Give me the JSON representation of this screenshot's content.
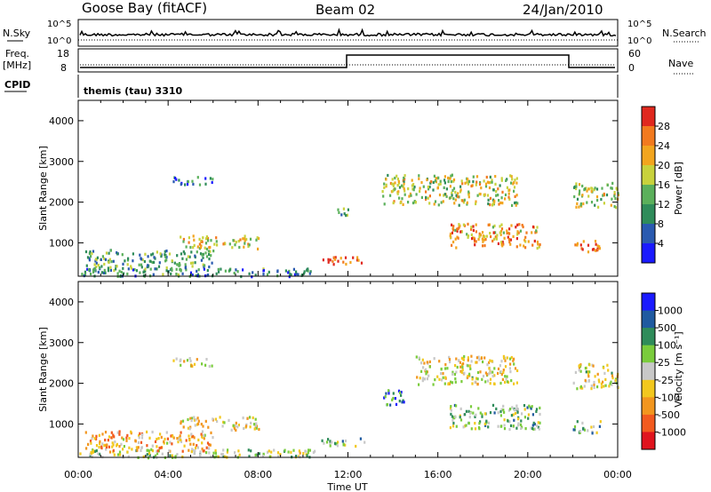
{
  "header": {
    "station": "Goose Bay (fitACF)",
    "beam": "Beam 02",
    "date": "24/Jan/2010"
  },
  "panels": {
    "nsky_label": "N.Sky",
    "nsky_ticks": [
      "10^5",
      "10^0"
    ],
    "nsearch_label": "N.Search",
    "nsearch_ticks": [
      "10^5",
      "10^0"
    ],
    "freq_label": "Freq.",
    "freq_unit": "[MHz]",
    "freq_ticks": [
      "18",
      "8"
    ],
    "nave_label": "Nave",
    "nave_ticks": [
      "60",
      "0"
    ],
    "cpid_label": "CPID",
    "cpid_value": "themis (tau) 3310"
  },
  "colors": {
    "power_scale": [
      "#1a1aff",
      "#2a5ab0",
      "#2f8c5a",
      "#5bb05b",
      "#c8d23c",
      "#f2a51e",
      "#f27a1e",
      "#e0281e"
    ],
    "velocity_scale": [
      "#1a1aff",
      "#1f5aa0",
      "#2f8c5a",
      "#7acc3c",
      "#c8c8c8",
      "#f2c81e",
      "#f2961e",
      "#f25a1e",
      "#e0141e"
    ]
  },
  "chart_data": [
    {
      "type": "heatmap",
      "name": "power",
      "ylabel": "Slant Range [km]",
      "y_ticks": [
        "1000",
        "2000",
        "3000",
        "4000"
      ],
      "colorbar_label": "Power [dB]",
      "colorbar_ticks": [
        "4",
        "8",
        "12",
        "16",
        "20",
        "24",
        "28"
      ],
      "xlim": [
        0,
        24
      ],
      "ylim": [
        180,
        4500
      ],
      "regions": [
        {
          "x": [
            0.0,
            10.5
          ],
          "y": [
            200,
            400
          ],
          "level": 0.3
        },
        {
          "x": [
            0.3,
            6.0
          ],
          "y": [
            350,
            850
          ],
          "level": 0.35
        },
        {
          "x": [
            4.5,
            8.0
          ],
          "y": [
            880,
            1200
          ],
          "level": 0.6
        },
        {
          "x": [
            4.2,
            6.0
          ],
          "y": [
            2450,
            2650
          ],
          "level": 0.25
        },
        {
          "x": [
            10.8,
            12.7
          ],
          "y": [
            480,
            680
          ],
          "level": 0.9
        },
        {
          "x": [
            11.5,
            12.0
          ],
          "y": [
            1700,
            2000
          ],
          "level": 0.35
        },
        {
          "x": [
            13.5,
            19.5
          ],
          "y": [
            1950,
            2700
          ],
          "level": 0.55
        },
        {
          "x": [
            16.5,
            20.5
          ],
          "y": [
            900,
            1500
          ],
          "level": 0.7
        },
        {
          "x": [
            22.0,
            24.0
          ],
          "y": [
            1900,
            2500
          ],
          "level": 0.55
        },
        {
          "x": [
            22.0,
            23.2
          ],
          "y": [
            800,
            1100
          ],
          "level": 0.8
        }
      ]
    },
    {
      "type": "heatmap",
      "name": "velocity",
      "xlabel": "Time UT",
      "ylabel": "Slant Range [km]",
      "x_ticks": [
        "00:00",
        "04:00",
        "08:00",
        "12:00",
        "16:00",
        "20:00",
        "00:00"
      ],
      "y_ticks": [
        "1000",
        "2000",
        "3000",
        "4000"
      ],
      "colorbar_label": "Velocity [m s⁻¹]",
      "colorbar_ticks": [
        "1000",
        "500",
        "100",
        "25",
        "-25",
        "-100",
        "-500",
        "-1000"
      ],
      "xlim": [
        0,
        24
      ],
      "ylim": [
        180,
        4500
      ],
      "regions": [
        {
          "x": [
            0.0,
            10.5
          ],
          "y": [
            200,
            400
          ],
          "level": 0.55
        },
        {
          "x": [
            0.3,
            6.0
          ],
          "y": [
            350,
            850
          ],
          "level": 0.35
        },
        {
          "x": [
            4.5,
            8.0
          ],
          "y": [
            880,
            1200
          ],
          "level": 0.45
        },
        {
          "x": [
            4.2,
            6.0
          ],
          "y": [
            2450,
            2650
          ],
          "level": 0.45
        },
        {
          "x": [
            10.8,
            12.7
          ],
          "y": [
            480,
            680
          ],
          "level": 0.6
        },
        {
          "x": [
            13.5,
            14.5
          ],
          "y": [
            1500,
            1900
          ],
          "level": 0.8
        },
        {
          "x": [
            15.0,
            19.5
          ],
          "y": [
            2000,
            2700
          ],
          "level": 0.45
        },
        {
          "x": [
            16.5,
            20.5
          ],
          "y": [
            900,
            1500
          ],
          "level": 0.6
        },
        {
          "x": [
            22.0,
            24.0
          ],
          "y": [
            1900,
            2500
          ],
          "level": 0.45
        },
        {
          "x": [
            22.0,
            23.2
          ],
          "y": [
            800,
            1100
          ],
          "level": 0.6
        }
      ]
    }
  ]
}
